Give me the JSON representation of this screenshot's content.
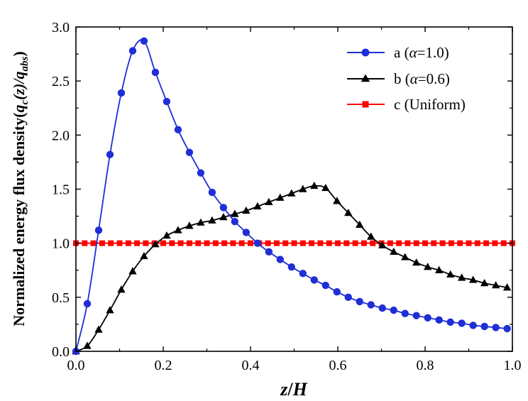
{
  "chart_data": {
    "type": "line",
    "xlabel_var": "z",
    "xlabel_sep": "/",
    "xlabel_var2": "H",
    "ylabel_text": "Normalized energy flux density(",
    "ylabel_q": "q",
    "ylabel_c": "c",
    "ylabel_z": "(z)/",
    "ylabel_q2": "q",
    "ylabel_abs": "abs",
    "ylabel_close": ")",
    "xlim": [
      0,
      1.0
    ],
    "ylim": [
      0,
      3.0
    ],
    "xticks": [
      "0.0",
      "0.2",
      "0.4",
      "0.6",
      "0.8",
      "1.0"
    ],
    "yticks": [
      "0.0",
      "0.5",
      "1.0",
      "1.5",
      "2.0",
      "2.5",
      "3.0"
    ],
    "grid": false,
    "legend_position": "top-right",
    "series": [
      {
        "name": "a (α=1.0)",
        "name_prefix": "a (",
        "name_var": "α",
        "name_suffix": "=1.0)",
        "color": "#1f2ed6",
        "marker": "circle",
        "x": [
          0.0,
          0.026,
          0.052,
          0.078,
          0.104,
          0.13,
          0.156,
          0.182,
          0.208,
          0.234,
          0.26,
          0.286,
          0.312,
          0.338,
          0.364,
          0.39,
          0.416,
          0.442,
          0.468,
          0.494,
          0.52,
          0.546,
          0.572,
          0.598,
          0.624,
          0.65,
          0.676,
          0.702,
          0.728,
          0.754,
          0.78,
          0.806,
          0.832,
          0.858,
          0.884,
          0.91,
          0.936,
          0.962,
          0.988
        ],
        "y": [
          0.0,
          0.44,
          1.12,
          1.82,
          2.39,
          2.78,
          2.87,
          2.58,
          2.31,
          2.05,
          1.84,
          1.65,
          1.47,
          1.33,
          1.2,
          1.1,
          1.0,
          0.92,
          0.85,
          0.78,
          0.72,
          0.66,
          0.61,
          0.55,
          0.5,
          0.46,
          0.43,
          0.4,
          0.38,
          0.35,
          0.33,
          0.31,
          0.29,
          0.27,
          0.26,
          0.24,
          0.23,
          0.22,
          0.21
        ]
      },
      {
        "name": "b (α=0.6)",
        "name_prefix": "b (",
        "name_var": "α",
        "name_suffix": "=0.6)",
        "color": "#000000",
        "marker": "triangle",
        "x": [
          0.0,
          0.026,
          0.052,
          0.078,
          0.104,
          0.13,
          0.156,
          0.182,
          0.208,
          0.234,
          0.26,
          0.286,
          0.312,
          0.338,
          0.364,
          0.39,
          0.416,
          0.442,
          0.468,
          0.494,
          0.52,
          0.546,
          0.572,
          0.598,
          0.624,
          0.65,
          0.676,
          0.702,
          0.728,
          0.754,
          0.78,
          0.806,
          0.832,
          0.858,
          0.884,
          0.91,
          0.936,
          0.962,
          0.988
        ],
        "y": [
          0.0,
          0.05,
          0.2,
          0.38,
          0.57,
          0.74,
          0.88,
          0.99,
          1.07,
          1.12,
          1.16,
          1.19,
          1.21,
          1.24,
          1.27,
          1.3,
          1.34,
          1.38,
          1.42,
          1.46,
          1.5,
          1.53,
          1.51,
          1.39,
          1.28,
          1.17,
          1.06,
          0.98,
          0.92,
          0.87,
          0.82,
          0.78,
          0.75,
          0.71,
          0.68,
          0.66,
          0.63,
          0.61,
          0.59
        ]
      },
      {
        "name": "c (Uniform)",
        "name_prefix": "c (Uniform)",
        "name_var": "",
        "name_suffix": "",
        "color": "#ff0000",
        "marker": "square",
        "x": [
          0.0,
          0.02,
          0.04,
          0.06,
          0.08,
          0.1,
          0.12,
          0.14,
          0.16,
          0.18,
          0.2,
          0.22,
          0.24,
          0.26,
          0.28,
          0.3,
          0.32,
          0.34,
          0.36,
          0.38,
          0.4,
          0.42,
          0.44,
          0.46,
          0.48,
          0.5,
          0.52,
          0.54,
          0.56,
          0.58,
          0.6,
          0.62,
          0.64,
          0.66,
          0.68,
          0.7,
          0.72,
          0.74,
          0.76,
          0.78,
          0.8,
          0.82,
          0.84,
          0.86,
          0.88,
          0.9,
          0.92,
          0.94,
          0.96,
          0.98,
          1.0
        ],
        "y": [
          1.0,
          1.0,
          1.0,
          1.0,
          1.0,
          1.0,
          1.0,
          1.0,
          1.0,
          1.0,
          1.0,
          1.0,
          1.0,
          1.0,
          1.0,
          1.0,
          1.0,
          1.0,
          1.0,
          1.0,
          1.0,
          1.0,
          1.0,
          1.0,
          1.0,
          1.0,
          1.0,
          1.0,
          1.0,
          1.0,
          1.0,
          1.0,
          1.0,
          1.0,
          1.0,
          1.0,
          1.0,
          1.0,
          1.0,
          1.0,
          1.0,
          1.0,
          1.0,
          1.0,
          1.0,
          1.0,
          1.0,
          1.0,
          1.0,
          1.0,
          1.0
        ]
      }
    ]
  }
}
